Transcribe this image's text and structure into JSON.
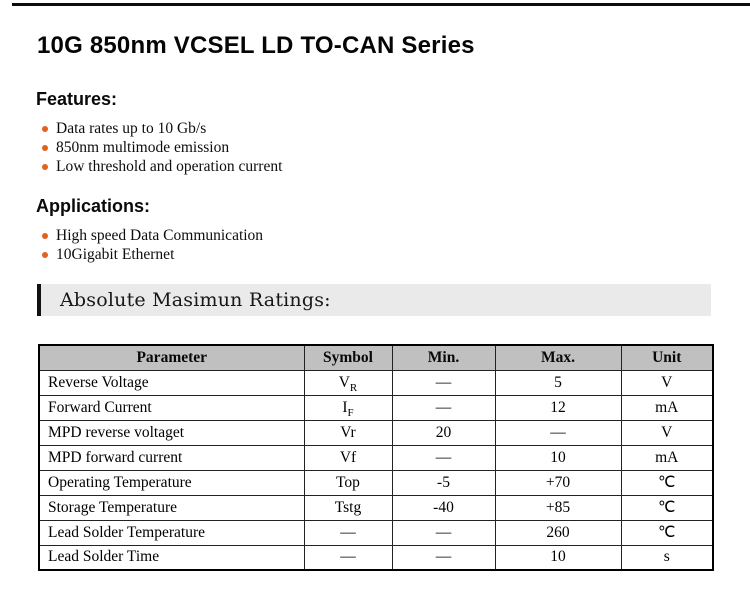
{
  "title": "10G 850nm VCSEL LD TO-CAN Series",
  "features": {
    "heading": "Features:",
    "items": [
      "Data rates up to 10 Gb/s",
      "850nm multimode emission",
      "Low threshold and operation current"
    ]
  },
  "applications": {
    "heading": "Applications:",
    "items": [
      "High speed Data Communication",
      "10Gigabit Ethernet"
    ]
  },
  "banner": {
    "label": "Absolute Masimun Ratings:"
  },
  "colors": {
    "bullet": "#e2611f",
    "banner_bg": "#eaeaea",
    "table_header_bg": "#c0c0c0",
    "top_rule": "#0c0c0c"
  },
  "table": {
    "headers": [
      "Parameter",
      "Symbol",
      "Min.",
      "Max.",
      "Unit"
    ],
    "rows": [
      {
        "parameter": "Reverse Voltage",
        "symbol": "V",
        "symbol_sub": "R",
        "min": "—",
        "max": "5",
        "unit": "V"
      },
      {
        "parameter": "Forward Current",
        "symbol": "I",
        "symbol_sub": "F",
        "min": "—",
        "max": "12",
        "unit": "mA"
      },
      {
        "parameter": "MPD reverse voltaget",
        "symbol": "Vr",
        "symbol_sub": "",
        "min": "20",
        "max": "—",
        "unit": "V"
      },
      {
        "parameter": "MPD forward current",
        "symbol": "Vf",
        "symbol_sub": "",
        "min": "—",
        "max": "10",
        "unit": "mA"
      },
      {
        "parameter": "Operating Temperature",
        "symbol": "Top",
        "symbol_sub": "",
        "min": "-5",
        "max": "+70",
        "unit": "℃"
      },
      {
        "parameter": "Storage Temperature",
        "symbol": "Tstg",
        "symbol_sub": "",
        "min": "-40",
        "max": "+85",
        "unit": "℃"
      },
      {
        "parameter": "Lead Solder Temperature",
        "symbol": "—",
        "symbol_sub": "",
        "min": "—",
        "max": "260",
        "unit": "℃"
      },
      {
        "parameter": "Lead Solder Time",
        "symbol": "—",
        "symbol_sub": "",
        "min": "—",
        "max": "10",
        "unit": "s"
      }
    ]
  }
}
